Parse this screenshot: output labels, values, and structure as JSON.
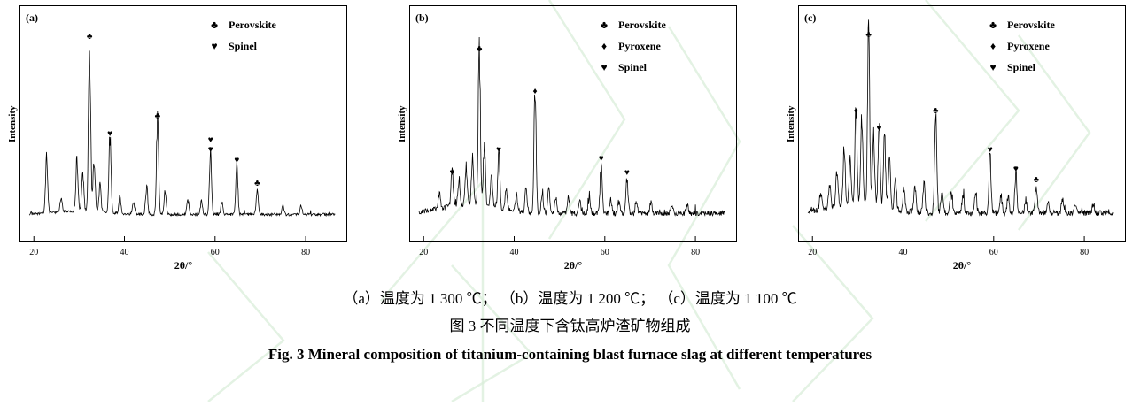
{
  "figure": {
    "caption_line1": "（a）温度为 1 300 ℃； （b）温度为 1 200 ℃； （c）温度为 1 100 ℃",
    "caption_line2": "图 3  不同温度下含钛高炉渣矿物组成",
    "caption_en": "Fig. 3 Mineral composition of titanium-containing blast furnace slag at different temperatures"
  },
  "colors": {
    "trace": "#000000",
    "watermark": "#d9eed9"
  },
  "chart_data": [
    {
      "type": "line",
      "panel_label": "(a)",
      "temperature_label": "温度为 1 300 ℃",
      "xlabel": "2θ/°",
      "ylabel": "Intensity",
      "xlim": [
        18,
        88
      ],
      "xticks": [
        20,
        40,
        60,
        80
      ],
      "legend": [
        {
          "symbol": "♣",
          "label": "Perovskite"
        },
        {
          "symbol": "♥",
          "label": "Spinel"
        }
      ],
      "render": {
        "seed": 7,
        "noise": 0.015,
        "hump": 0.02
      },
      "peaks": [
        {
          "x": 22.8,
          "h": 0.3
        },
        {
          "x": 26.0,
          "h": 0.08
        },
        {
          "x": 29.5,
          "h": 0.28
        },
        {
          "x": 30.8,
          "h": 0.22
        },
        {
          "x": 32.3,
          "h": 0.97,
          "marker": "♣"
        },
        {
          "x": 33.3,
          "h": 0.3
        },
        {
          "x": 34.6,
          "h": 0.16
        },
        {
          "x": 36.8,
          "h": 0.42,
          "marker": "♥"
        },
        {
          "x": 39.0,
          "h": 0.1
        },
        {
          "x": 42.0,
          "h": 0.07
        },
        {
          "x": 44.9,
          "h": 0.16
        },
        {
          "x": 47.3,
          "h": 0.52,
          "marker": "♣"
        },
        {
          "x": 49.0,
          "h": 0.12
        },
        {
          "x": 54.0,
          "h": 0.09
        },
        {
          "x": 57.0,
          "h": 0.07
        },
        {
          "x": 59.0,
          "h": 0.33,
          "marker": "♥",
          "marker2": "♥"
        },
        {
          "x": 61.5,
          "h": 0.07
        },
        {
          "x": 64.8,
          "h": 0.27,
          "marker": "♥"
        },
        {
          "x": 69.3,
          "h": 0.14,
          "marker": "♣"
        },
        {
          "x": 75.0,
          "h": 0.05
        },
        {
          "x": 79.0,
          "h": 0.05
        }
      ]
    },
    {
      "type": "line",
      "panel_label": "(b)",
      "temperature_label": "温度为 1 200 ℃",
      "xlabel": "2θ/°",
      "ylabel": "Intensity",
      "xlim": [
        18,
        88
      ],
      "xticks": [
        20,
        40,
        60,
        80
      ],
      "legend": [
        {
          "symbol": "♣",
          "label": "Perovskite"
        },
        {
          "symbol": "♦",
          "label": "Pyroxene"
        },
        {
          "symbol": "♥",
          "label": "Spinel"
        }
      ],
      "render": {
        "seed": 13,
        "noise": 0.028,
        "hump": 0.05
      },
      "peaks": [
        {
          "x": 23.5,
          "h": 0.1
        },
        {
          "x": 26.3,
          "h": 0.2,
          "marker": "♥"
        },
        {
          "x": 27.8,
          "h": 0.14
        },
        {
          "x": 29.4,
          "h": 0.22
        },
        {
          "x": 30.8,
          "h": 0.26
        },
        {
          "x": 32.3,
          "h": 0.9,
          "marker": "♣"
        },
        {
          "x": 33.4,
          "h": 0.34
        },
        {
          "x": 35.0,
          "h": 0.18
        },
        {
          "x": 36.6,
          "h": 0.33,
          "marker": "♥"
        },
        {
          "x": 38.2,
          "h": 0.12
        },
        {
          "x": 40.5,
          "h": 0.09
        },
        {
          "x": 42.6,
          "h": 0.14
        },
        {
          "x": 44.6,
          "h": 0.66,
          "marker": "♦"
        },
        {
          "x": 46.2,
          "h": 0.11
        },
        {
          "x": 47.6,
          "h": 0.14
        },
        {
          "x": 49.2,
          "h": 0.09
        },
        {
          "x": 52.0,
          "h": 0.09
        },
        {
          "x": 54.5,
          "h": 0.07
        },
        {
          "x": 56.6,
          "h": 0.09
        },
        {
          "x": 59.2,
          "h": 0.28,
          "marker": "♥"
        },
        {
          "x": 61.3,
          "h": 0.07
        },
        {
          "x": 63.1,
          "h": 0.07
        },
        {
          "x": 64.9,
          "h": 0.2,
          "marker": "♥"
        },
        {
          "x": 67.0,
          "h": 0.06
        },
        {
          "x": 70.2,
          "h": 0.06
        },
        {
          "x": 74.8,
          "h": 0.05
        },
        {
          "x": 78.2,
          "h": 0.05
        }
      ]
    },
    {
      "type": "line",
      "panel_label": "(c)",
      "temperature_label": "温度为 1 100 ℃",
      "xlabel": "2θ/°",
      "ylabel": "Intensity",
      "xlim": [
        18,
        88
      ],
      "xticks": [
        20,
        40,
        60,
        80
      ],
      "legend": [
        {
          "symbol": "♣",
          "label": "Perovskite"
        },
        {
          "symbol": "♦",
          "label": "Pyroxene"
        },
        {
          "symbol": "♥",
          "label": "Spinel"
        }
      ],
      "render": {
        "seed": 29,
        "noise": 0.032,
        "hump": 0.05
      },
      "peaks": [
        {
          "x": 21.8,
          "h": 0.1
        },
        {
          "x": 23.8,
          "h": 0.14
        },
        {
          "x": 25.4,
          "h": 0.2
        },
        {
          "x": 27.0,
          "h": 0.32
        },
        {
          "x": 28.3,
          "h": 0.26
        },
        {
          "x": 29.6,
          "h": 0.55,
          "marker": "♦"
        },
        {
          "x": 30.9,
          "h": 0.5
        },
        {
          "x": 32.4,
          "h": 0.98,
          "marker": "♣"
        },
        {
          "x": 33.5,
          "h": 0.4
        },
        {
          "x": 34.7,
          "h": 0.45,
          "marker": "♥"
        },
        {
          "x": 35.9,
          "h": 0.4
        },
        {
          "x": 37.0,
          "h": 0.28
        },
        {
          "x": 38.3,
          "h": 0.18
        },
        {
          "x": 40.2,
          "h": 0.12
        },
        {
          "x": 42.6,
          "h": 0.14
        },
        {
          "x": 44.6,
          "h": 0.17
        },
        {
          "x": 47.2,
          "h": 0.55,
          "marker": "♣"
        },
        {
          "x": 48.6,
          "h": 0.14
        },
        {
          "x": 50.6,
          "h": 0.12
        },
        {
          "x": 53.2,
          "h": 0.1
        },
        {
          "x": 56.0,
          "h": 0.11
        },
        {
          "x": 59.2,
          "h": 0.33,
          "marker": "♥"
        },
        {
          "x": 61.6,
          "h": 0.1
        },
        {
          "x": 63.2,
          "h": 0.09
        },
        {
          "x": 64.9,
          "h": 0.22,
          "marker": "♥"
        },
        {
          "x": 67.1,
          "h": 0.08
        },
        {
          "x": 69.4,
          "h": 0.16,
          "marker": "♣"
        },
        {
          "x": 72.0,
          "h": 0.06
        },
        {
          "x": 75.2,
          "h": 0.08
        },
        {
          "x": 78.0,
          "h": 0.05
        },
        {
          "x": 82.0,
          "h": 0.05
        }
      ]
    }
  ]
}
